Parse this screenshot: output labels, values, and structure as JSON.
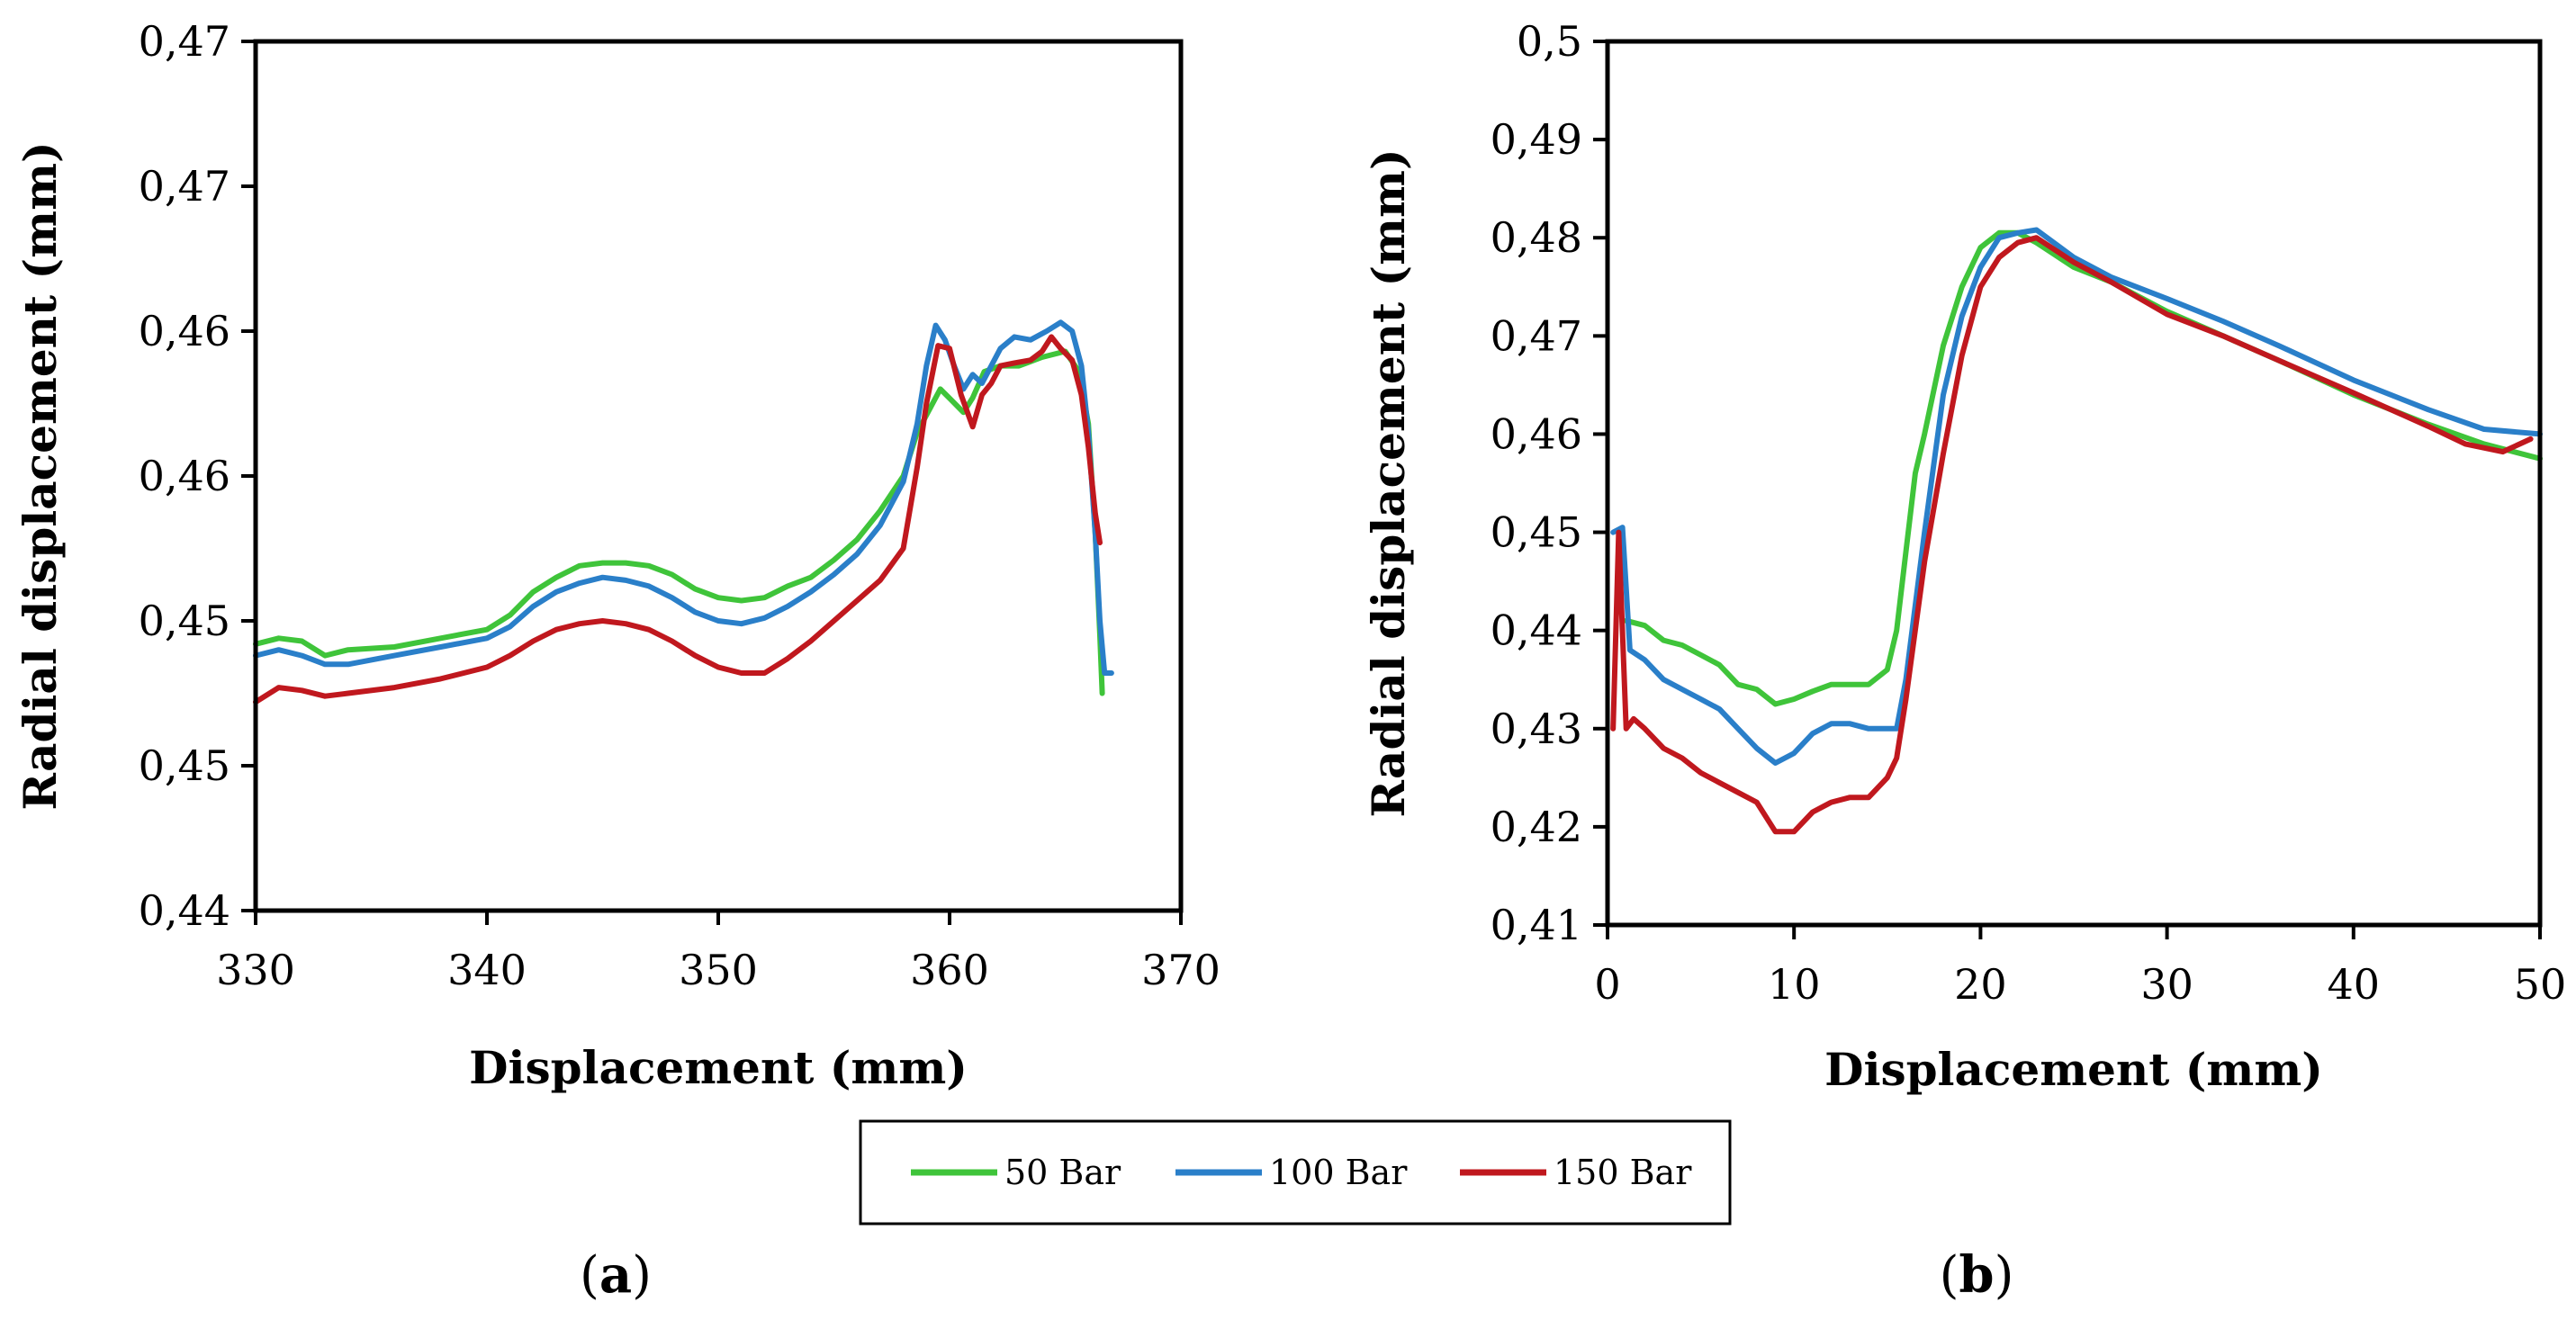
{
  "colors": {
    "green": "#3fc43a",
    "blue": "#2a7fc9",
    "red": "#c0181e"
  },
  "legend": {
    "items": [
      "50 Bar",
      "100 Bar",
      "150 Bar"
    ]
  },
  "panels": {
    "a": "a",
    "b": "b"
  },
  "chart_data": [
    {
      "type": "line",
      "panel": "a",
      "xlabel": "Displacement (mm)",
      "ylabel": "Radial displacement (mm)",
      "xlim": [
        330,
        370
      ],
      "ylim": [
        0.44,
        0.47
      ],
      "xticks": [
        330,
        340,
        350,
        360,
        370
      ],
      "xtick_labels": [
        "330",
        "340",
        "350",
        "360",
        "370"
      ],
      "yticks": [
        0.44,
        0.445,
        0.45,
        0.455,
        0.46,
        0.465,
        0.47
      ],
      "ytick_labels": [
        "0,44",
        "0,45",
        "0,45",
        "0,46",
        "0,46",
        "0,47",
        "0,47"
      ],
      "series": [
        {
          "name": "50 Bar",
          "color": "green",
          "x": [
            330,
            331,
            332,
            333,
            334,
            336,
            338,
            340,
            341,
            342,
            343,
            344,
            345,
            346,
            347,
            348,
            349,
            350,
            351,
            352,
            353,
            354,
            355,
            356,
            357,
            358,
            358.6,
            359.2,
            359.6,
            360.1,
            360.6,
            361.0,
            361.5,
            362.2,
            363,
            364,
            365,
            365.6,
            366.0,
            366.3,
            366.5,
            366.6
          ],
          "y": [
            0.4492,
            0.4494,
            0.4493,
            0.4488,
            0.449,
            0.4491,
            0.4494,
            0.4497,
            0.4502,
            0.451,
            0.4515,
            0.4519,
            0.452,
            0.452,
            0.4519,
            0.4516,
            0.4511,
            0.4508,
            0.4507,
            0.4508,
            0.4512,
            0.4515,
            0.4521,
            0.4528,
            0.4538,
            0.455,
            0.4565,
            0.4574,
            0.458,
            0.4576,
            0.4572,
            0.4577,
            0.4586,
            0.4588,
            0.4588,
            0.4591,
            0.4593,
            0.4586,
            0.4568,
            0.453,
            0.4495,
            0.4475
          ]
        },
        {
          "name": "100 Bar",
          "color": "blue",
          "x": [
            330,
            331,
            332,
            333,
            334,
            336,
            338,
            340,
            341,
            342,
            343,
            344,
            345,
            346,
            347,
            348,
            349,
            350,
            351,
            352,
            353,
            354,
            355,
            356,
            357,
            358,
            358.6,
            359.0,
            359.4,
            359.8,
            360.2,
            360.6,
            361.0,
            361.4,
            361.8,
            362.2,
            362.8,
            363.5,
            364.2,
            364.8,
            365.3,
            365.7,
            366.0,
            366.3,
            366.5,
            366.7,
            367.0
          ],
          "y": [
            0.4488,
            0.449,
            0.4488,
            0.4485,
            0.4485,
            0.4488,
            0.4491,
            0.4494,
            0.4498,
            0.4505,
            0.451,
            0.4513,
            0.4515,
            0.4514,
            0.4512,
            0.4508,
            0.4503,
            0.45,
            0.4499,
            0.4501,
            0.4505,
            0.451,
            0.4516,
            0.4523,
            0.4533,
            0.4548,
            0.4568,
            0.4588,
            0.4602,
            0.4597,
            0.4588,
            0.458,
            0.4585,
            0.4582,
            0.4588,
            0.4594,
            0.4598,
            0.4597,
            0.46,
            0.4603,
            0.46,
            0.4588,
            0.4565,
            0.453,
            0.45,
            0.4482,
            0.4482
          ]
        },
        {
          "name": "150 Bar",
          "color": "red",
          "x": [
            330,
            331,
            332,
            333,
            334,
            336,
            338,
            340,
            341,
            342,
            343,
            344,
            345,
            346,
            347,
            348,
            349,
            350,
            351,
            352,
            353,
            354,
            355,
            356,
            357,
            358,
            358.6,
            359.0,
            359.5,
            360.0,
            360.5,
            361.0,
            361.4,
            361.8,
            362.2,
            362.8,
            363.5,
            364.0,
            364.4,
            364.8,
            365.3,
            365.7,
            366.0,
            366.3,
            366.5
          ],
          "y": [
            0.4472,
            0.4477,
            0.4476,
            0.4474,
            0.4475,
            0.4477,
            0.448,
            0.4484,
            0.4488,
            0.4493,
            0.4497,
            0.4499,
            0.45,
            0.4499,
            0.4497,
            0.4493,
            0.4488,
            0.4484,
            0.4482,
            0.4482,
            0.4487,
            0.4493,
            0.45,
            0.4507,
            0.4514,
            0.4525,
            0.4553,
            0.4575,
            0.4595,
            0.4594,
            0.4578,
            0.4567,
            0.4578,
            0.4582,
            0.4588,
            0.4589,
            0.459,
            0.4593,
            0.4598,
            0.4594,
            0.459,
            0.4578,
            0.456,
            0.4537,
            0.4527
          ]
        }
      ]
    },
    {
      "type": "line",
      "panel": "b",
      "xlabel": "Displacement (mm)",
      "ylabel": "Radial displacement (mm)",
      "xlim": [
        0,
        50
      ],
      "ylim": [
        0.41,
        0.5
      ],
      "xticks": [
        0,
        10,
        20,
        30,
        40,
        50
      ],
      "xtick_labels": [
        "0",
        "10",
        "20",
        "30",
        "40",
        "50"
      ],
      "yticks": [
        0.41,
        0.42,
        0.43,
        0.44,
        0.45,
        0.46,
        0.47,
        0.48,
        0.49,
        0.5
      ],
      "ytick_labels": [
        "0,41",
        "0,42",
        "0,43",
        "0,44",
        "0,45",
        "0,46",
        "0,47",
        "0,48",
        "0,49",
        "0,5"
      ],
      "series": [
        {
          "name": "50 Bar",
          "color": "green",
          "x": [
            1.0,
            2,
            3,
            4,
            5,
            6,
            7,
            8,
            9,
            10,
            11,
            12,
            13,
            14,
            15,
            15.5,
            16,
            16.5,
            17,
            18,
            19,
            20,
            21,
            22,
            23,
            25,
            27,
            30,
            33,
            36,
            40,
            44,
            47,
            50
          ],
          "y": [
            0.441,
            0.4405,
            0.439,
            0.4385,
            0.4375,
            0.4365,
            0.4345,
            0.434,
            0.4325,
            0.433,
            0.4338,
            0.4345,
            0.4345,
            0.4345,
            0.436,
            0.44,
            0.448,
            0.456,
            0.46,
            0.469,
            0.475,
            0.479,
            0.4805,
            0.4805,
            0.4795,
            0.477,
            0.4755,
            0.4725,
            0.47,
            0.4675,
            0.464,
            0.461,
            0.459,
            0.4575
          ]
        },
        {
          "name": "100 Bar",
          "color": "blue",
          "x": [
            0.3,
            0.8,
            1.2,
            2,
            3,
            4,
            5,
            6,
            7,
            8,
            9,
            10,
            11,
            12,
            13,
            14,
            15,
            15.5,
            16,
            17,
            18,
            19,
            20,
            21,
            22,
            23,
            25,
            27,
            30,
            33,
            36,
            40,
            44,
            47,
            50
          ],
          "y": [
            0.45,
            0.4505,
            0.438,
            0.437,
            0.435,
            0.434,
            0.433,
            0.432,
            0.43,
            0.428,
            0.4265,
            0.4275,
            0.4295,
            0.4305,
            0.4305,
            0.43,
            0.43,
            0.43,
            0.435,
            0.45,
            0.464,
            0.472,
            0.477,
            0.48,
            0.4805,
            0.4808,
            0.478,
            0.476,
            0.4738,
            0.4715,
            0.469,
            0.4655,
            0.4625,
            0.4605,
            0.46
          ]
        },
        {
          "name": "150 Bar",
          "color": "red",
          "x": [
            0.3,
            0.6,
            1.0,
            1.4,
            2,
            3,
            4,
            5,
            6,
            7,
            8,
            9,
            10,
            11,
            12,
            13,
            14,
            15,
            15.5,
            16,
            17,
            18,
            19,
            20,
            21,
            22,
            23,
            25,
            27,
            30,
            33,
            36,
            40,
            44,
            46,
            48,
            49.5
          ],
          "y": [
            0.43,
            0.45,
            0.43,
            0.431,
            0.43,
            0.428,
            0.427,
            0.4255,
            0.4245,
            0.4235,
            0.4225,
            0.4195,
            0.4195,
            0.4215,
            0.4225,
            0.423,
            0.423,
            0.425,
            0.427,
            0.433,
            0.447,
            0.458,
            0.468,
            0.475,
            0.478,
            0.4795,
            0.48,
            0.4775,
            0.4755,
            0.4722,
            0.47,
            0.4675,
            0.4642,
            0.4608,
            0.459,
            0.4582,
            0.4595
          ]
        }
      ]
    }
  ]
}
